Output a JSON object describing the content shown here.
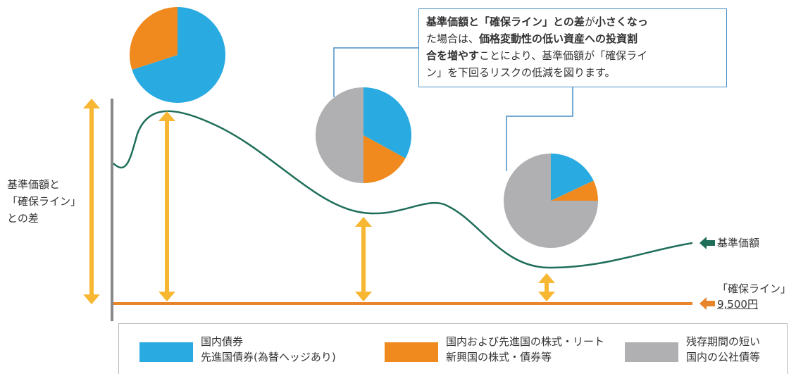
{
  "callout": {
    "lines": [
      [
        {
          "t": "基準価額と「確保ライン」との差",
          "b": true
        },
        {
          "t": "が",
          "b": false
        },
        {
          "t": "小さくなっ",
          "b": true
        }
      ],
      [
        {
          "t": "た場合は、",
          "b": false
        },
        {
          "t": "価格変動性の低い資産への投資割",
          "b": true
        }
      ],
      [
        {
          "t": "合を増やす",
          "b": true
        },
        {
          "t": "ことにより、基準価額が「確保ライ",
          "b": false
        }
      ],
      [
        {
          "t": "ン」を下回るリスクの低減を図ります。",
          "b": false
        }
      ]
    ]
  },
  "left_label": [
    "基準価額と",
    "「確保ライン」",
    "との差"
  ],
  "nav_label": "基準価額",
  "floor_label": {
    "line1": "「確保ライン」",
    "line2": "9,500円"
  },
  "colors": {
    "domestic_bonds": "#29abe2",
    "equities_reits": "#f08a1f",
    "short_bonds": "#b0b0b2",
    "nav_line": "#1f6e5a",
    "floor_line": "#e8842a",
    "gap_arrow": "#f7b733",
    "axis": "#888888"
  },
  "pies": [
    {
      "name": "pie-1",
      "slices": {
        "domestic": 0.7,
        "equities": 0.3,
        "short": 0.0
      }
    },
    {
      "name": "pie-2",
      "slices": {
        "domestic": 0.33,
        "equities": 0.17,
        "short": 0.5
      }
    },
    {
      "name": "pie-3",
      "slices": {
        "domestic": 0.18,
        "equities": 0.07,
        "short": 0.75
      }
    }
  ],
  "legend": [
    {
      "name": "legend-domestic-bonds",
      "color_key": "domestic_bonds",
      "lines": [
        "国内債券",
        "先進国債券(為替ヘッジあり)"
      ]
    },
    {
      "name": "legend-equities-reits",
      "color_key": "equities_reits",
      "lines": [
        "国内および先進国の株式・リート",
        "新興国の株式・債券等"
      ]
    },
    {
      "name": "legend-short-bonds",
      "color_key": "short_bonds",
      "lines": [
        "残存期間の短い",
        "国内の公社債等"
      ]
    }
  ]
}
